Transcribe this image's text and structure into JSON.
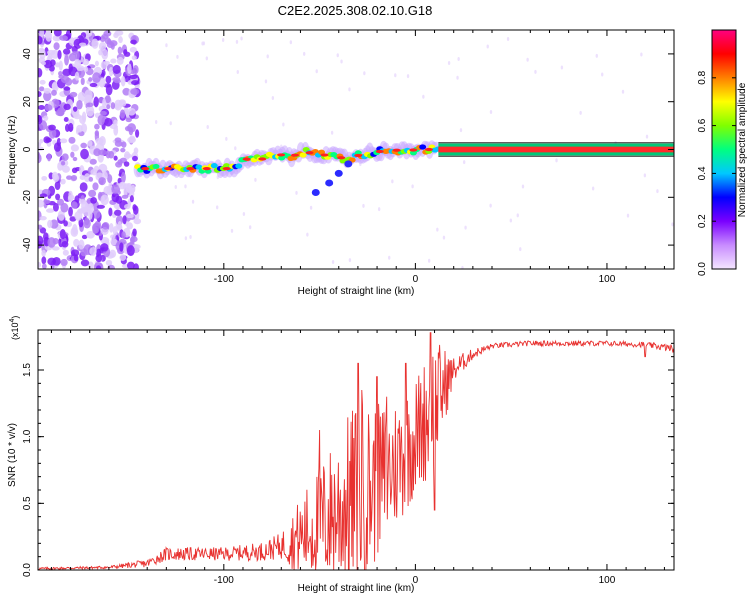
{
  "title": "C2E2.2025.308.02.10.G18",
  "chart_data": [
    {
      "type": "heatmap",
      "name": "spectrogram",
      "xlabel": "Height of straight line (km)",
      "ylabel": "Frequency (Hz)",
      "xlim": [
        -197,
        135
      ],
      "ylim": [
        -50,
        50
      ],
      "xticks": [
        -100,
        0,
        100
      ],
      "yticks": [
        -40,
        -20,
        0,
        20,
        40
      ],
      "colorbar": {
        "label": "Normalized spectral amplitude",
        "range": [
          0,
          1
        ],
        "ticks": [
          "0.0",
          "0.2",
          "0.4",
          "0.6",
          "0.8"
        ],
        "tick_values": [
          0.0,
          0.2,
          0.4,
          0.6,
          0.8
        ],
        "colormap": [
          "#f4e6ff",
          "#c88cff",
          "#7a00ff",
          "#0000ff",
          "#00c8ff",
          "#00ff80",
          "#80ff00",
          "#ffff00",
          "#ff8000",
          "#ff0000",
          "#ff0080"
        ]
      },
      "ridge": {
        "description_points_x": [
          -145,
          -120,
          -95,
          -88,
          -80,
          -72,
          -65,
          -58,
          -50,
          -42,
          -35,
          -28,
          -20,
          -12,
          -5,
          0,
          5,
          12,
          135
        ],
        "description_points_y": [
          -8,
          -8,
          -8,
          -4,
          -4,
          -2,
          -3,
          -1,
          -2,
          -3,
          -4,
          -2,
          -1,
          0,
          -1,
          0,
          0,
          0,
          0
        ],
        "offshoot_x": [
          -52,
          -45,
          -40,
          -35
        ],
        "offshoot_y": [
          -18,
          -14,
          -10,
          -6
        ],
        "noise_region_x": [
          -197,
          -145
        ]
      }
    },
    {
      "type": "line",
      "name": "snr",
      "xlabel": "Height of straight line (km)",
      "ylabel": "SNR (10 * v/v)",
      "yscale_label": "(x10",
      "yscale_exp": "4",
      "yscale_close": ")",
      "xlim": [
        -197,
        135
      ],
      "ylim": [
        0,
        1.8
      ],
      "xticks": [
        -100,
        0,
        100
      ],
      "yticks": [
        0.0,
        0.5,
        1.0,
        1.5
      ],
      "ytick_labels": [
        "0.0",
        "0.5",
        "1.0",
        "1.5"
      ],
      "color": "#e8312f",
      "envelope": {
        "x": [
          -197,
          -160,
          -140,
          -130,
          -120,
          -100,
          -80,
          -70,
          -60,
          -50,
          -40,
          -30,
          -20,
          -10,
          0,
          10,
          20,
          30,
          40,
          60,
          80,
          100,
          120,
          135
        ],
        "base": [
          0.01,
          0.02,
          0.05,
          0.12,
          0.12,
          0.12,
          0.14,
          0.18,
          0.25,
          0.35,
          0.45,
          0.55,
          0.65,
          0.8,
          1.0,
          1.25,
          1.5,
          1.62,
          1.68,
          1.7,
          1.7,
          1.7,
          1.69,
          1.66
        ],
        "spread": [
          0.01,
          0.01,
          0.03,
          0.05,
          0.05,
          0.05,
          0.07,
          0.1,
          0.3,
          0.45,
          0.6,
          0.75,
          0.6,
          0.5,
          0.45,
          0.5,
          0.1,
          0.04,
          0.02,
          0.02,
          0.02,
          0.02,
          0.02,
          0.03
        ]
      },
      "peaks": [
        {
          "x": -50,
          "y": 1.05
        },
        {
          "x": -30,
          "y": 1.55
        },
        {
          "x": -28,
          "y": 1.35
        },
        {
          "x": -20,
          "y": 1.45
        },
        {
          "x": -15,
          "y": 1.3
        },
        {
          "x": -5,
          "y": 1.55
        },
        {
          "x": 8,
          "y": 1.78
        },
        {
          "x": 10,
          "y": 0.45
        },
        {
          "x": 120,
          "y": 1.6
        }
      ]
    }
  ]
}
